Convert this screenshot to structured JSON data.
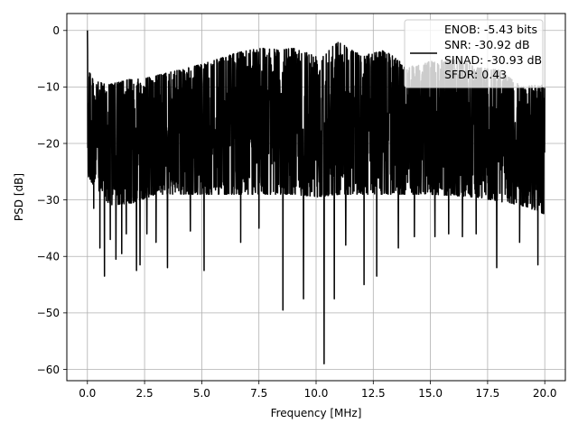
{
  "chart_data": {
    "type": "line",
    "title": "",
    "xlabel": "Frequency [MHz]",
    "ylabel": "PSD [dB]",
    "xlim": [
      -0.9,
      20.9
    ],
    "ylim": [
      -62,
      3
    ],
    "xticks": [
      0.0,
      2.5,
      5.0,
      7.5,
      10.0,
      12.5,
      15.0,
      17.5,
      20.0
    ],
    "xtick_labels": [
      "0.0",
      "2.5",
      "5.0",
      "7.5",
      "10.0",
      "12.5",
      "15.0",
      "17.5",
      "20.0"
    ],
    "yticks": [
      0,
      -10,
      -20,
      -30,
      -40,
      -50,
      -60
    ],
    "ytick_labels": [
      "0",
      "−10",
      "−20",
      "−30",
      "−40",
      "−50",
      "−60"
    ],
    "grid": true,
    "line_color": "#000000",
    "legend": {
      "placement": "upper right",
      "entries": [
        "ENOB: -5.43 bits",
        "SNR: -30.92 dB",
        "SINAD: -30.93 dB",
        "SFDR: 0.43"
      ]
    },
    "series": [
      {
        "x_range": [
          0,
          20
        ],
        "peak": {
          "x": 0.0,
          "y": 0.0
        },
        "upper_envelope": {
          "x": [
            0.0,
            0.25,
            1.0,
            2.0,
            2.5,
            4.0,
            5.0,
            6.5,
            7.5,
            8.5,
            9.0,
            10.0,
            11.0,
            12.0,
            13.0,
            14.0,
            15.0,
            16.0,
            17.0,
            18.0,
            19.0,
            20.0
          ],
          "y": [
            -4.5,
            -9.0,
            -9.5,
            -8.5,
            -8.5,
            -7.0,
            -6.0,
            -4.0,
            -3.0,
            -3.5,
            -3.0,
            -4.5,
            -2.0,
            -4.5,
            -3.5,
            -6.5,
            -5.5,
            -5.0,
            -6.5,
            -7.0,
            -10.0,
            -9.5
          ]
        },
        "lower_envelope": {
          "x": [
            0.0,
            1.0,
            2.0,
            3.0,
            5.0,
            7.0,
            9.0,
            10.0,
            11.0,
            13.0,
            15.0,
            17.0,
            19.0,
            20.0
          ],
          "y": [
            -26.0,
            -31.0,
            -30.5,
            -29.0,
            -29.0,
            -29.0,
            -29.0,
            -29.5,
            -29.0,
            -29.0,
            -29.0,
            -29.5,
            -31.0,
            -32.5
          ]
        },
        "dips": [
          {
            "x": 0.28,
            "y": -31.5
          },
          {
            "x": 0.55,
            "y": -38.5
          },
          {
            "x": 0.75,
            "y": -43.5
          },
          {
            "x": 1.0,
            "y": -37.0
          },
          {
            "x": 1.25,
            "y": -40.5
          },
          {
            "x": 1.5,
            "y": -39.5
          },
          {
            "x": 1.7,
            "y": -36.0
          },
          {
            "x": 2.15,
            "y": -42.5
          },
          {
            "x": 2.3,
            "y": -41.5
          },
          {
            "x": 2.6,
            "y": -36.0
          },
          {
            "x": 3.0,
            "y": -37.5
          },
          {
            "x": 3.5,
            "y": -42.0
          },
          {
            "x": 4.5,
            "y": -35.5
          },
          {
            "x": 5.1,
            "y": -42.5
          },
          {
            "x": 6.7,
            "y": -37.5
          },
          {
            "x": 7.5,
            "y": -35.0
          },
          {
            "x": 8.55,
            "y": -49.5
          },
          {
            "x": 9.45,
            "y": -47.5
          },
          {
            "x": 10.35,
            "y": -59.0
          },
          {
            "x": 10.8,
            "y": -47.5
          },
          {
            "x": 11.3,
            "y": -38.0
          },
          {
            "x": 12.1,
            "y": -45.0
          },
          {
            "x": 12.65,
            "y": -43.5
          },
          {
            "x": 13.6,
            "y": -38.5
          },
          {
            "x": 14.3,
            "y": -36.5
          },
          {
            "x": 15.2,
            "y": -36.5
          },
          {
            "x": 15.8,
            "y": -36.0
          },
          {
            "x": 16.4,
            "y": -36.5
          },
          {
            "x": 17.0,
            "y": -36.0
          },
          {
            "x": 17.9,
            "y": -42.0
          },
          {
            "x": 18.9,
            "y": -37.5
          },
          {
            "x": 19.7,
            "y": -41.5
          }
        ]
      }
    ]
  }
}
